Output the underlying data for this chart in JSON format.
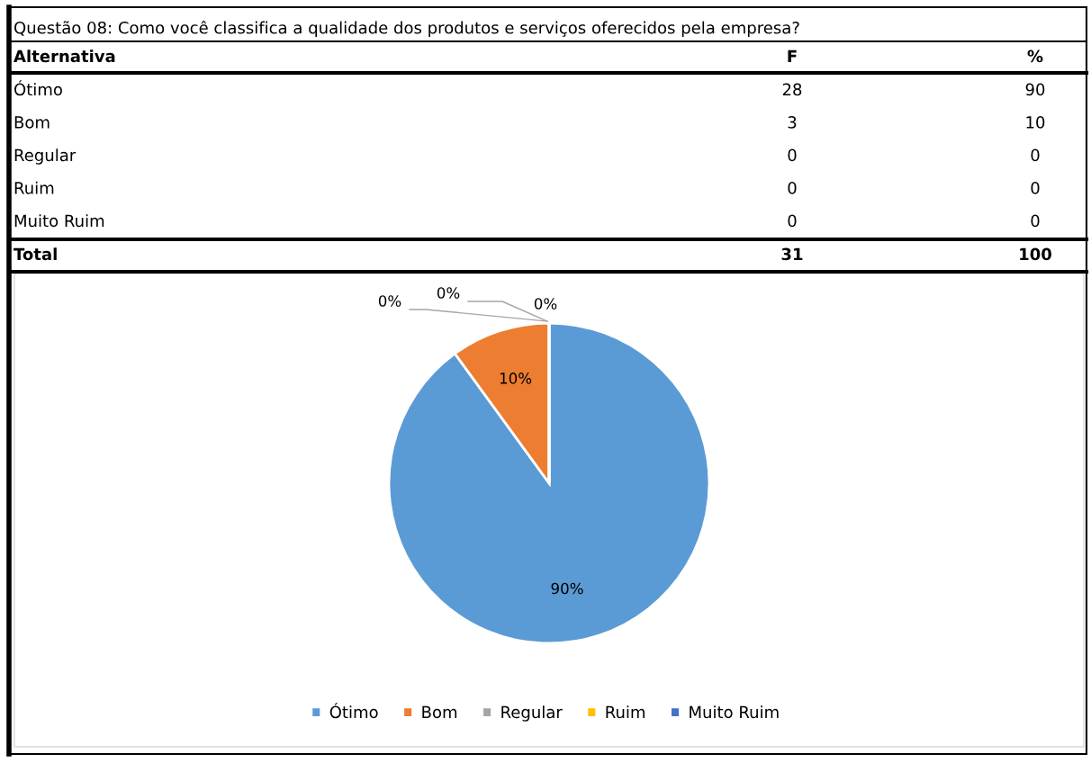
{
  "chart_data": [
    {
      "type": "other",
      "title": "Questão 08: Como você classifica a qualidade dos produtos e serviços oferecidos pela empresa?",
      "annotations": [
        "Alternativa",
        "Total"
      ],
      "categories": [
        "Ótimo",
        "Bom",
        "Regular",
        "Ruim",
        "Muito Ruim"
      ],
      "series": [
        {
          "name": "F",
          "values": [
            28,
            3,
            0,
            0,
            0
          ]
        },
        {
          "name": "%",
          "values": [
            90,
            10,
            0,
            0,
            0
          ]
        }
      ],
      "totals": [
        "31",
        "100"
      ],
      "data_labels": true
    },
    {
      "type": "pie",
      "categories": [
        "Ótimo",
        "Bom",
        "Regular",
        "Ruim",
        "Muito Ruim"
      ],
      "values": [
        90,
        10,
        0,
        0,
        0
      ],
      "colors": [
        "#5b9bd5",
        "#ed7d31",
        "#a5a5a5",
        "#ffc000",
        "#4472c4"
      ],
      "value_labels": [
        "90%",
        "10%",
        "0%",
        "0%",
        "0%"
      ],
      "legend": "bottom"
    }
  ]
}
